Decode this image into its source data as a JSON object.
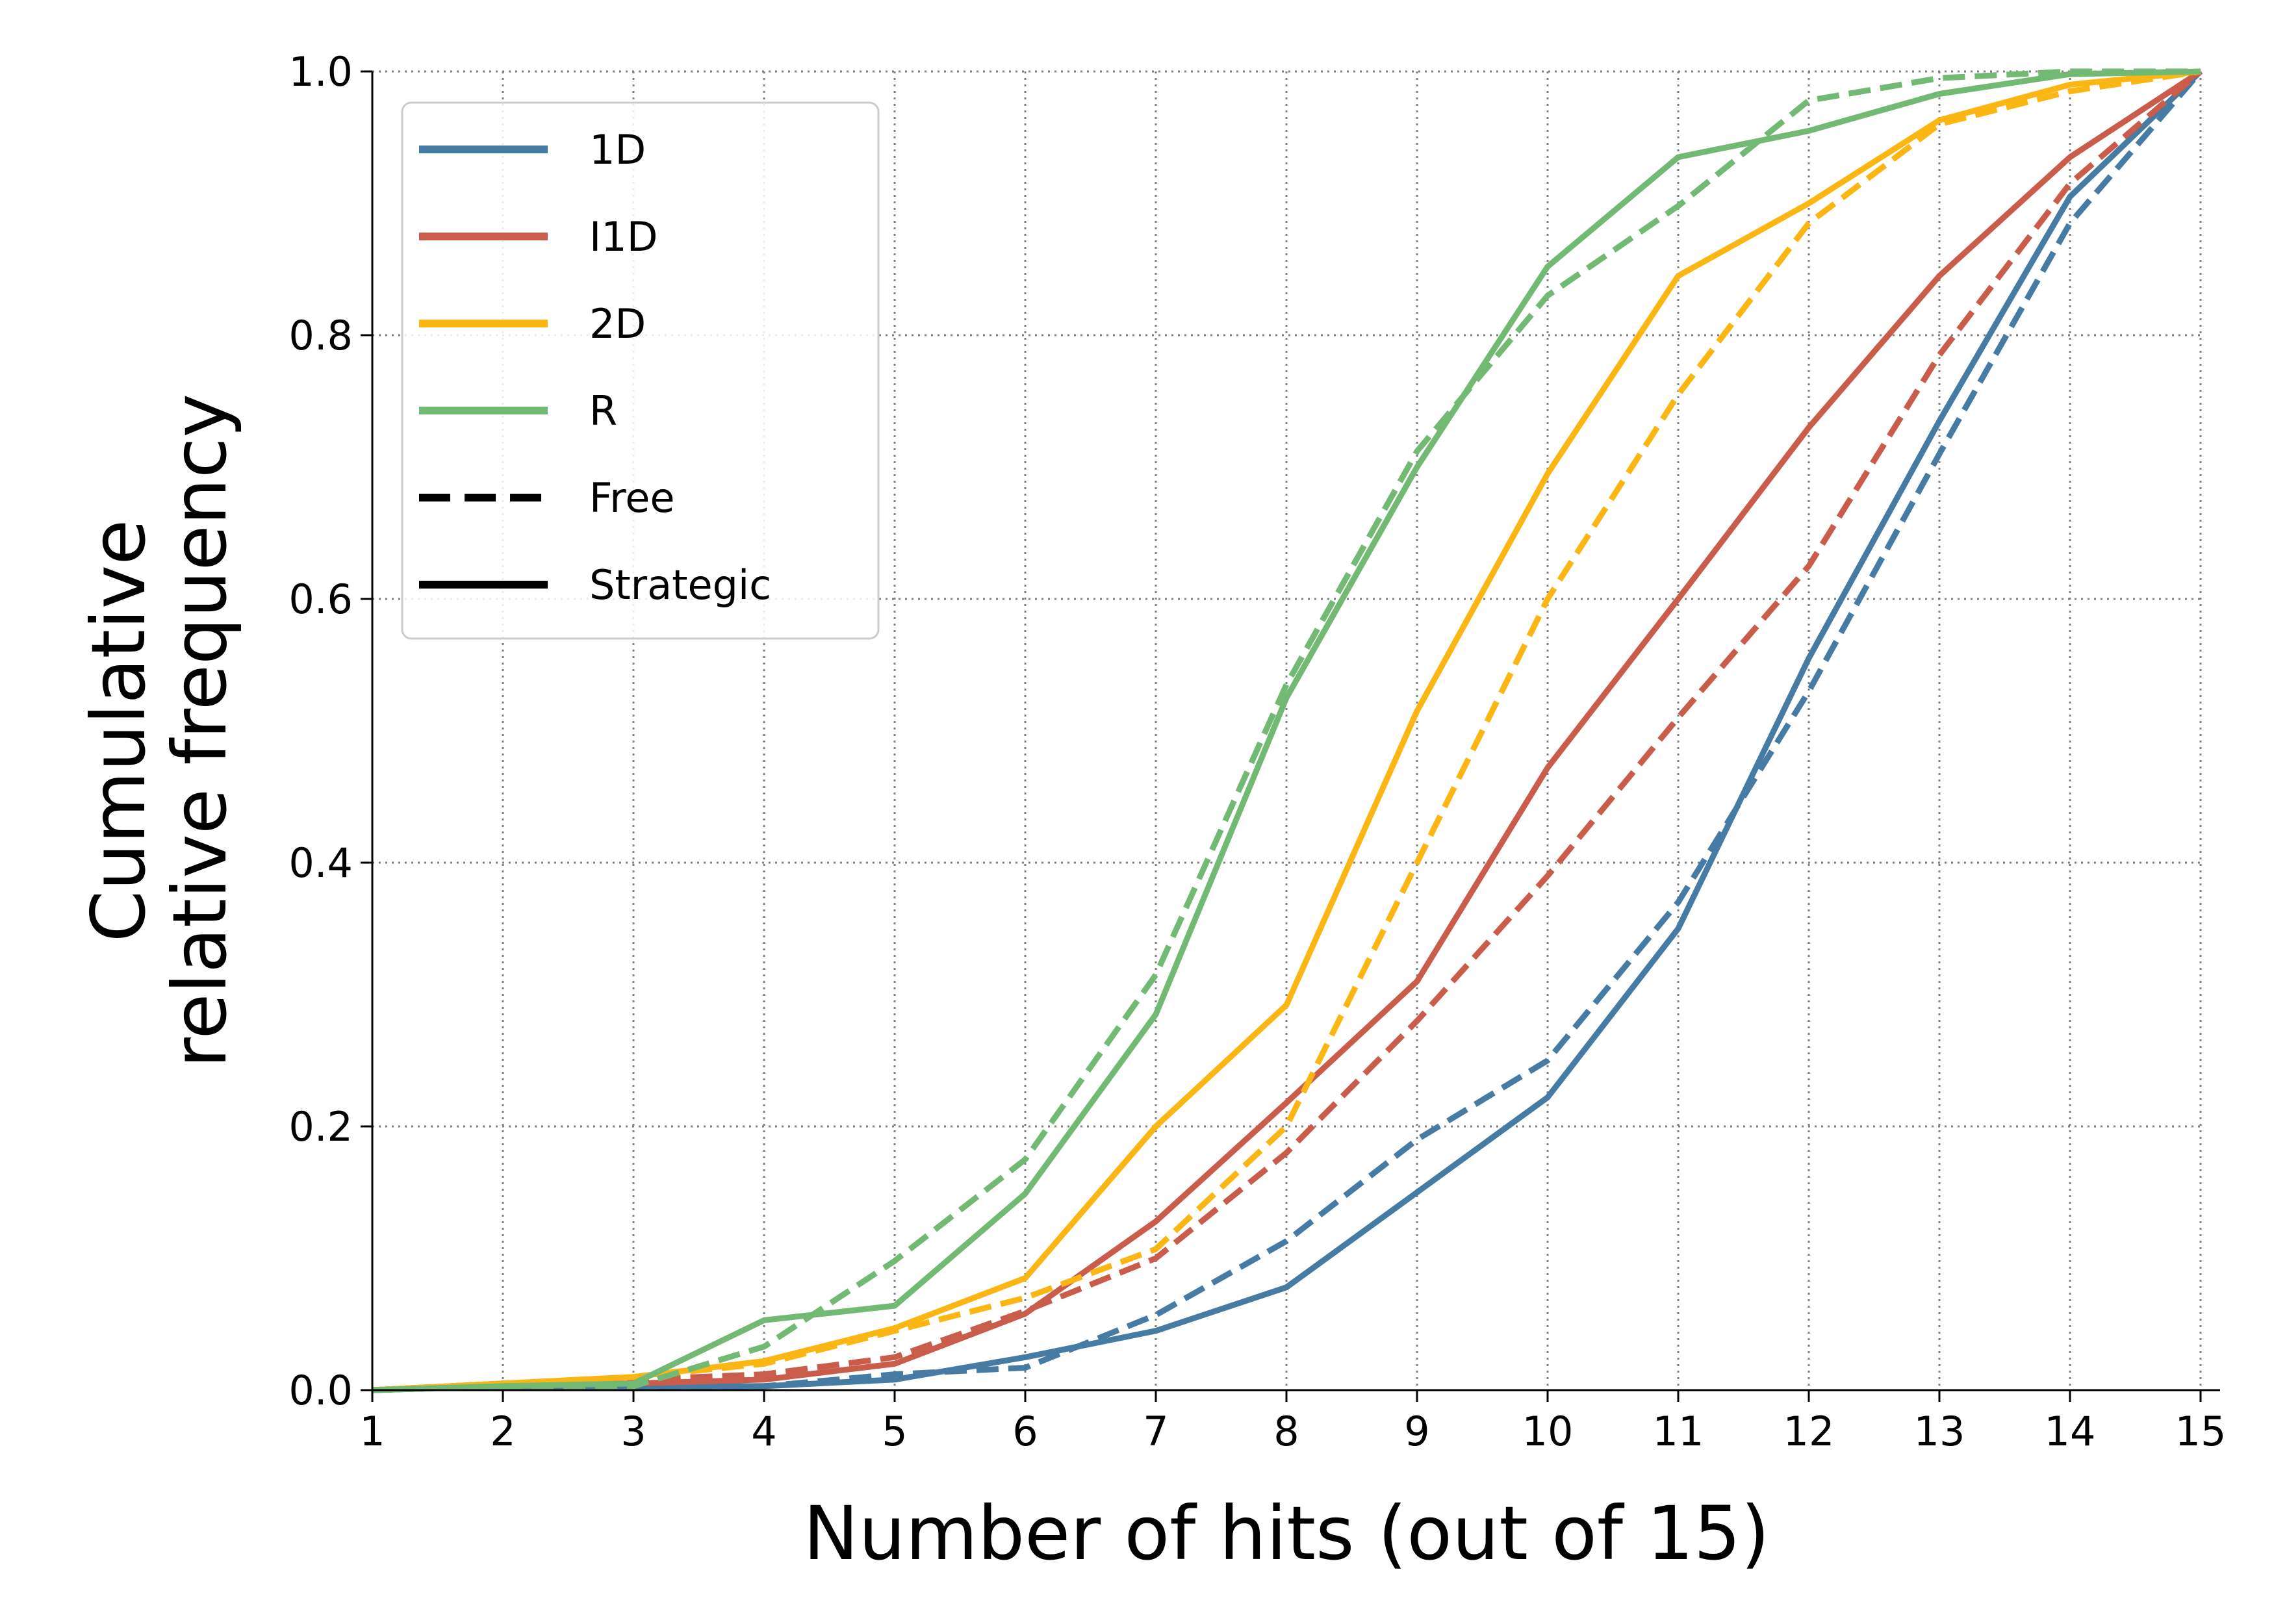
{
  "chart_data": {
    "type": "line",
    "xlabel": "Number of hits (out of 15)",
    "ylabel_lines": [
      "Cumulative",
      "relative frequency"
    ],
    "xlim": [
      1,
      15
    ],
    "ylim": [
      0,
      1
    ],
    "x_ticks": [
      1,
      2,
      3,
      4,
      5,
      6,
      7,
      8,
      9,
      10,
      11,
      12,
      13,
      14,
      15
    ],
    "y_ticks": [
      "0.0",
      "0.2",
      "0.4",
      "0.6",
      "0.8",
      "1.0"
    ],
    "grid": true,
    "legend_position": "top-left",
    "x": [
      1,
      2,
      3,
      4,
      5,
      6,
      7,
      8,
      9,
      10,
      11,
      12,
      13,
      14,
      15
    ],
    "series": [
      {
        "group": "1D",
        "style": "Free",
        "color": "#467ca3",
        "values": [
          0.0,
          0.003,
          0.003,
          0.003,
          0.012,
          0.017,
          0.057,
          0.113,
          0.19,
          0.25,
          0.37,
          0.53,
          0.71,
          0.885,
          1.0
        ]
      },
      {
        "group": "1D",
        "style": "Strategic",
        "color": "#467ca3",
        "values": [
          0.0,
          0.003,
          0.003,
          0.003,
          0.008,
          0.025,
          0.045,
          0.078,
          0.15,
          0.222,
          0.35,
          0.555,
          0.735,
          0.905,
          1.0
        ]
      },
      {
        "group": "I1D",
        "style": "Free",
        "color": "#c95c4a",
        "values": [
          0.0,
          0.005,
          0.008,
          0.012,
          0.025,
          0.06,
          0.1,
          0.18,
          0.28,
          0.39,
          0.51,
          0.625,
          0.785,
          0.915,
          1.0
        ]
      },
      {
        "group": "I1D",
        "style": "Strategic",
        "color": "#c95c4a",
        "values": [
          0.0,
          0.005,
          0.005,
          0.008,
          0.02,
          0.058,
          0.128,
          0.218,
          0.31,
          0.472,
          0.6,
          0.73,
          0.845,
          0.935,
          1.0
        ]
      },
      {
        "group": "2D",
        "style": "Free",
        "color": "#fbb614",
        "values": [
          0.0,
          0.005,
          0.01,
          0.02,
          0.045,
          0.07,
          0.107,
          0.2,
          0.4,
          0.6,
          0.755,
          0.885,
          0.96,
          0.985,
          1.0
        ]
      },
      {
        "group": "2D",
        "style": "Strategic",
        "color": "#fbb614",
        "values": [
          0.0,
          0.005,
          0.01,
          0.022,
          0.047,
          0.085,
          0.2,
          0.292,
          0.515,
          0.695,
          0.845,
          0.9,
          0.963,
          0.99,
          1.0
        ]
      },
      {
        "group": "R",
        "style": "Free",
        "color": "#72b973",
        "values": [
          0.0,
          0.003,
          0.003,
          0.033,
          0.098,
          0.175,
          0.315,
          0.535,
          0.712,
          0.83,
          0.898,
          0.978,
          0.995,
          1.0,
          1.0
        ]
      },
      {
        "group": "R",
        "style": "Strategic",
        "color": "#72b973",
        "values": [
          0.0,
          0.003,
          0.005,
          0.053,
          0.064,
          0.149,
          0.285,
          0.525,
          0.7,
          0.852,
          0.935,
          0.955,
          0.983,
          0.998,
          1.0
        ]
      }
    ],
    "legend": [
      {
        "label": "1D",
        "color": "#467ca3",
        "dash": false
      },
      {
        "label": "I1D",
        "color": "#c95c4a",
        "dash": false
      },
      {
        "label": "2D",
        "color": "#fbb614",
        "dash": false
      },
      {
        "label": "R",
        "color": "#72b973",
        "dash": false
      },
      {
        "label": "Free",
        "color": "#000000",
        "dash": true
      },
      {
        "label": "Strategic",
        "color": "#000000",
        "dash": false
      }
    ]
  }
}
